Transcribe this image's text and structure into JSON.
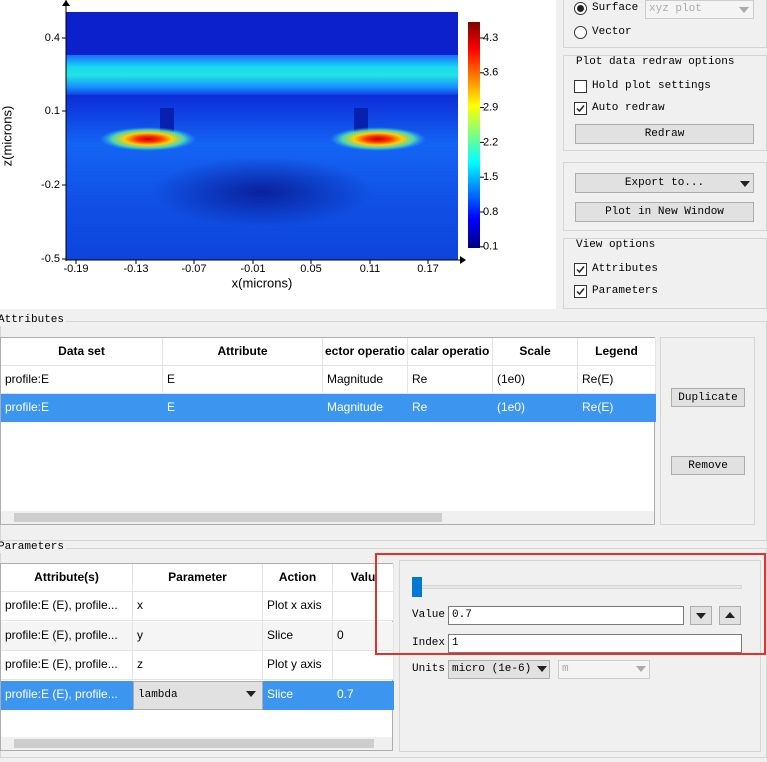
{
  "plot": {
    "yticks": [
      "0.4",
      "0.1",
      "-0.2",
      "-0.5"
    ],
    "xticks": [
      "-0.19",
      "-0.13",
      "-0.07",
      "-0.01",
      "0.05",
      "0.11",
      "0.17"
    ],
    "colorbar_ticks": [
      "4.3",
      "3.6",
      "2.9",
      "2.2",
      "1.5",
      "0.8",
      "0.1"
    ],
    "xlabel": "x(microns)",
    "ylabel": "z(microns)"
  },
  "side": {
    "surface": "Surface",
    "plot_select": "xyz plot",
    "vector": "Vector",
    "redraw_group": "Plot data redraw options",
    "hold": "Hold plot settings",
    "auto": "Auto redraw",
    "redraw": "Redraw",
    "export": "Export to...",
    "new_window": "Plot in New Window",
    "view_group": "View options",
    "attributes": "Attributes",
    "parameters": "Parameters"
  },
  "attributes": {
    "title": "Attributes",
    "columns": [
      "Data set",
      "Attribute",
      "ector operatio",
      "calar operatio",
      "Scale",
      "Legend"
    ],
    "rows": [
      [
        "profile:E",
        "E",
        "Magnitude",
        "Re",
        "(1e0)",
        "Re(E)"
      ],
      [
        "profile:E",
        "E",
        "Magnitude",
        "Re",
        "(1e0)",
        "Re(E)"
      ]
    ],
    "duplicate": "Duplicate",
    "remove": "Remove"
  },
  "parameters": {
    "title": "Parameters",
    "columns": [
      "Attribute(s)",
      "Parameter",
      "Action",
      "Valu"
    ],
    "rows": [
      [
        "profile:E (E), profile...",
        "x",
        "Plot x axis"
      ],
      [
        "profile:E (E), profile...",
        "y",
        "Slice",
        "0"
      ],
      [
        "profile:E (E), profile...",
        "z",
        "Plot y axis"
      ],
      [
        "profile:E (E), profile...",
        "lambda",
        "Slice",
        "0.7"
      ]
    ]
  },
  "slider": {
    "value_label": "Value",
    "value": "0.7",
    "index_label": "Index",
    "index": "1",
    "units_label": "Units",
    "units": "micro (1e-6)",
    "unit": "m"
  }
}
